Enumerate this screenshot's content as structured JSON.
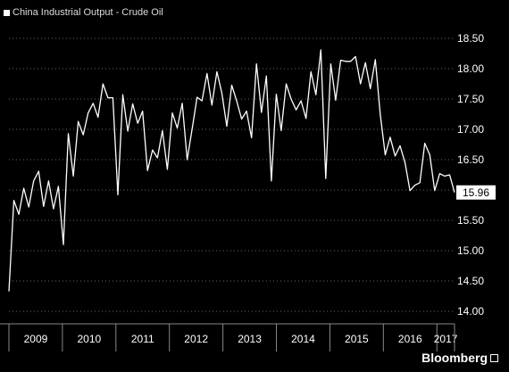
{
  "legend": {
    "label": "China Industrial Output - Crude Oil"
  },
  "brand": {
    "name": "Bloomberg"
  },
  "colors": {
    "background": "#000000",
    "line": "#ffffff",
    "grid": "#666666",
    "tag_bg": "#ffffff",
    "tag_text": "#000000"
  },
  "chart_data": {
    "type": "line",
    "title": "China Industrial Output - Crude Oil",
    "xlabel": "",
    "ylabel": "",
    "ylim": [
      14.0,
      18.5
    ],
    "yticks": [
      "18.50",
      "18.00",
      "17.50",
      "17.00",
      "16.50",
      "16.00",
      "15.50",
      "15.00",
      "14.50",
      "14.00"
    ],
    "xticks": [
      "2009",
      "2010",
      "2011",
      "2012",
      "2013",
      "2014",
      "2015",
      "2016",
      "2017"
    ],
    "x_start": 2009.0,
    "x_end": 2017.33,
    "grid": true,
    "last_value_label": "15.96",
    "series": [
      {
        "values": [
          14.33,
          15.83,
          15.6,
          16.03,
          15.72,
          16.15,
          16.31,
          15.73,
          16.15,
          15.69,
          16.06,
          15.1,
          16.93,
          16.23,
          17.13,
          16.91,
          17.27,
          17.43,
          17.2,
          17.75,
          17.52,
          17.52,
          15.92,
          17.57,
          16.97,
          17.42,
          17.1,
          17.3,
          16.32,
          16.66,
          16.53,
          16.98,
          16.34,
          17.27,
          17.02,
          17.43,
          16.5,
          17.0,
          17.53,
          17.47,
          17.92,
          17.4,
          17.95,
          17.6,
          17.05,
          17.73,
          17.47,
          17.17,
          17.3,
          16.86,
          18.08,
          17.28,
          17.88,
          16.15,
          17.58,
          16.98,
          17.75,
          17.5,
          17.32,
          17.47,
          17.18,
          17.95,
          17.57,
          18.31,
          16.19,
          18.08,
          17.48,
          18.14,
          18.12,
          18.12,
          18.2,
          17.75,
          18.1,
          17.67,
          18.15,
          17.25,
          16.58,
          16.87,
          16.56,
          16.73,
          16.45,
          15.99,
          16.08,
          16.12,
          16.77,
          16.58,
          15.99,
          16.27,
          16.23,
          16.25,
          15.96
        ]
      }
    ]
  }
}
